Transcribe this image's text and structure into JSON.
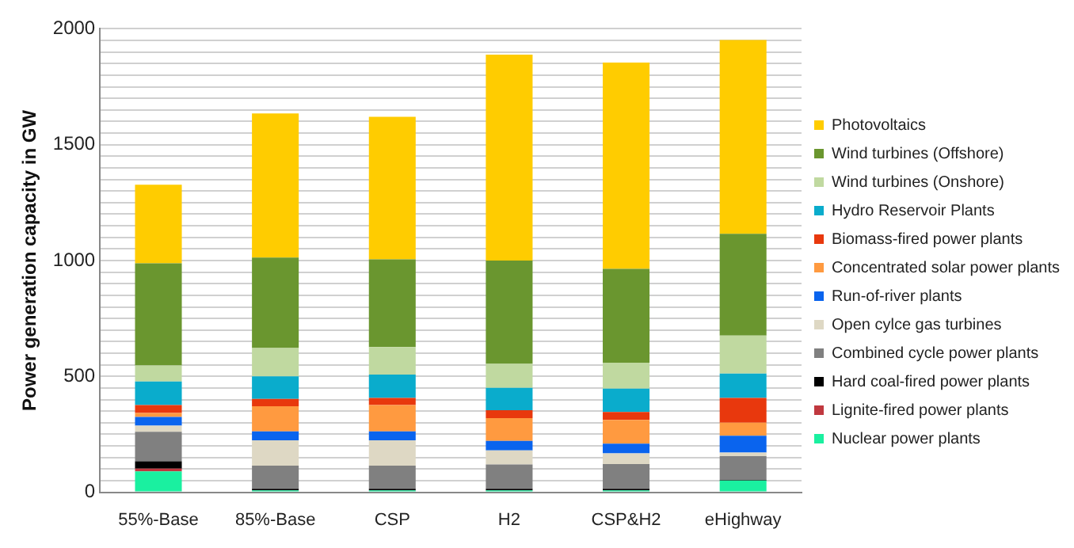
{
  "chart_data": {
    "type": "bar",
    "stacked": true,
    "ylabel": "Power generation capacity in GW",
    "categories": [
      "55%-Base",
      "85%-Base",
      "CSP",
      "H2",
      "CSP&H2",
      "eHighway"
    ],
    "series": [
      {
        "name": "Nuclear power plants",
        "color": "#1af0a0",
        "values": [
          90,
          8,
          8,
          8,
          8,
          51
        ]
      },
      {
        "name": "Lignite-fired power plants",
        "color": "#c0383f",
        "values": [
          12,
          0,
          0,
          0,
          0,
          0
        ]
      },
      {
        "name": "Hard coal-fired power plants",
        "color": "#000000",
        "values": [
          32,
          7,
          7,
          7,
          7,
          2
        ]
      },
      {
        "name": "Combined cycle power plants",
        "color": "#808080",
        "values": [
          127,
          100,
          100,
          105,
          107,
          103
        ]
      },
      {
        "name": "Open cylce gas turbines",
        "color": "#ded8c4",
        "values": [
          26,
          109,
          109,
          61,
          46,
          15
        ]
      },
      {
        "name": "Run-of-river plants",
        "color": "#0a64ee",
        "values": [
          38,
          39,
          39,
          41,
          42,
          73
        ]
      },
      {
        "name": "Concentrated solar power plants",
        "color": "#ff9a40",
        "values": [
          17,
          108,
          113,
          98,
          102,
          56
        ]
      },
      {
        "name": "Biomass-fired power plants",
        "color": "#e8380d",
        "values": [
          34,
          32,
          31,
          34,
          34,
          107
        ]
      },
      {
        "name": "Hydro Reservoir Plants",
        "color": "#0aaccc",
        "values": [
          102,
          97,
          101,
          97,
          101,
          105
        ]
      },
      {
        "name": "Wind turbines (Onshore)",
        "color": "#c0d9a0",
        "values": [
          69,
          122,
          119,
          103,
          112,
          164
        ]
      },
      {
        "name": "Wind turbines (Offshore)",
        "color": "#6a962f",
        "values": [
          441,
          391,
          378,
          446,
          405,
          439
        ]
      },
      {
        "name": "Photovoltaics",
        "color": "#ffcc00",
        "values": [
          339,
          622,
          615,
          889,
          890,
          837
        ]
      }
    ],
    "ylim": [
      0,
      2000
    ],
    "yticks": [
      0,
      {
        "value": 50,
        "label": null
      },
      {
        "value": 100,
        "label": null
      },
      {
        "value": 150,
        "label": null
      },
      {
        "value": 200,
        "label": null
      },
      {
        "value": 250,
        "label": null
      },
      {
        "value": 300,
        "label": null
      },
      {
        "value": 350,
        "label": null
      },
      {
        "value": 400,
        "label": null
      },
      {
        "value": 450,
        "label": null
      },
      500,
      {
        "value": 550,
        "label": null
      },
      {
        "value": 600,
        "label": null
      },
      {
        "value": 650,
        "label": null
      },
      {
        "value": 700,
        "label": null
      },
      {
        "value": 750,
        "label": null
      },
      {
        "value": 800,
        "label": null
      },
      {
        "value": 850,
        "label": null
      },
      {
        "value": 900,
        "label": null
      },
      {
        "value": 950,
        "label": null
      },
      1000,
      {
        "value": 1050,
        "label": null
      },
      {
        "value": 1100,
        "label": null
      },
      {
        "value": 1150,
        "label": null
      },
      {
        "value": 1200,
        "label": null
      },
      {
        "value": 1250,
        "label": null
      },
      {
        "value": 1300,
        "label": null
      },
      {
        "value": 1350,
        "label": null
      },
      {
        "value": 1400,
        "label": null
      },
      {
        "value": 1450,
        "label": null
      },
      1500,
      {
        "value": 1550,
        "label": null
      },
      {
        "value": 1600,
        "label": null
      },
      {
        "value": 1650,
        "label": null
      },
      {
        "value": 1700,
        "label": null
      },
      {
        "value": 1750,
        "label": null
      },
      {
        "value": 1800,
        "label": null
      },
      {
        "value": 1850,
        "label": null
      },
      {
        "value": 1900,
        "label": null
      },
      {
        "value": 1950,
        "label": null
      },
      2000
    ],
    "grid": "y",
    "legend": "right"
  }
}
